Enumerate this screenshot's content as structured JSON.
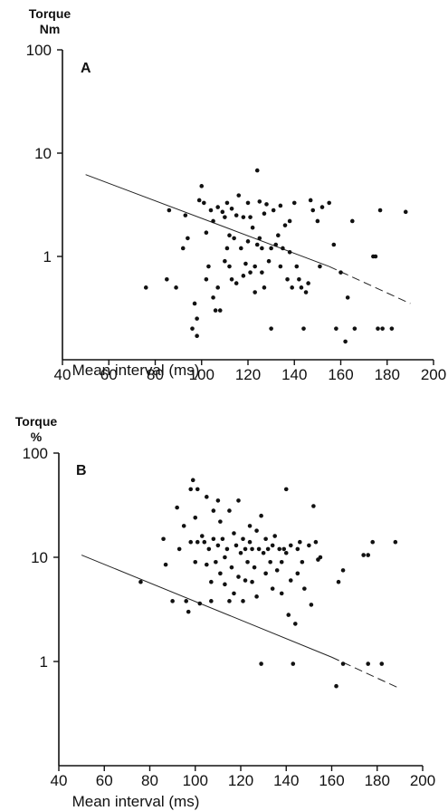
{
  "chart_data": [
    {
      "type": "scatter",
      "panel_label": "A",
      "ylabel_line1": "Torque",
      "ylabel_line2": "Nm",
      "xlabel": "Mean interval  (ms)",
      "y_scale": "log",
      "xlim": [
        40,
        200
      ],
      "ylim": [
        0.1,
        100
      ],
      "x_ticks": [
        40,
        60,
        80,
        100,
        120,
        140,
        160,
        180,
        200
      ],
      "y_ticks": [
        "100",
        "10",
        "1"
      ],
      "y_tick_values": [
        100,
        10,
        1
      ],
      "fit_line": {
        "x_start": 50,
        "y_start": 6.2,
        "x_solid_end": 155,
        "y_solid_end": 0.8,
        "x_end": 190,
        "y_end": 0.35
      },
      "points": [
        [
          76,
          0.5
        ],
        [
          85,
          0.6
        ],
        [
          86,
          2.8
        ],
        [
          89,
          0.5
        ],
        [
          92,
          1.2
        ],
        [
          93,
          2.5
        ],
        [
          94,
          1.5
        ],
        [
          96,
          0.2
        ],
        [
          97,
          0.35
        ],
        [
          98,
          0.25
        ],
        [
          98,
          0.17
        ],
        [
          99,
          3.5
        ],
        [
          100,
          4.8
        ],
        [
          101,
          3.3
        ],
        [
          102,
          1.7
        ],
        [
          102,
          0.6
        ],
        [
          103,
          0.8
        ],
        [
          104,
          2.8
        ],
        [
          105,
          2.2
        ],
        [
          105,
          0.4
        ],
        [
          106,
          0.3
        ],
        [
          107,
          3.0
        ],
        [
          107,
          0.5
        ],
        [
          108,
          0.3
        ],
        [
          109,
          2.7
        ],
        [
          110,
          0.9
        ],
        [
          110,
          2.4
        ],
        [
          111,
          1.2
        ],
        [
          111,
          3.3
        ],
        [
          112,
          1.6
        ],
        [
          112,
          0.8
        ],
        [
          113,
          2.9
        ],
        [
          113,
          0.6
        ],
        [
          114,
          1.5
        ],
        [
          115,
          2.5
        ],
        [
          115,
          0.55
        ],
        [
          116,
          3.9
        ],
        [
          117,
          1.2
        ],
        [
          118,
          0.65
        ],
        [
          118,
          2.4
        ],
        [
          119,
          0.85
        ],
        [
          120,
          1.4
        ],
        [
          120,
          3.3
        ],
        [
          121,
          0.7
        ],
        [
          121,
          2.4
        ],
        [
          122,
          1.9
        ],
        [
          123,
          0.8
        ],
        [
          123,
          0.45
        ],
        [
          124,
          6.8
        ],
        [
          124,
          1.3
        ],
        [
          125,
          3.4
        ],
        [
          125,
          1.5
        ],
        [
          126,
          1.2
        ],
        [
          126,
          0.7
        ],
        [
          127,
          2.6
        ],
        [
          127,
          0.5
        ],
        [
          128,
          3.2
        ],
        [
          129,
          0.9
        ],
        [
          130,
          0.2
        ],
        [
          130,
          1.2
        ],
        [
          131,
          2.8
        ],
        [
          132,
          1.3
        ],
        [
          133,
          1.6
        ],
        [
          134,
          0.8
        ],
        [
          134,
          3.1
        ],
        [
          135,
          1.2
        ],
        [
          136,
          2.0
        ],
        [
          137,
          0.6
        ],
        [
          138,
          1.1
        ],
        [
          138,
          2.2
        ],
        [
          139,
          0.5
        ],
        [
          140,
          3.3
        ],
        [
          141,
          0.8
        ],
        [
          142,
          0.6
        ],
        [
          143,
          0.5
        ],
        [
          144,
          0.2
        ],
        [
          145,
          0.45
        ],
        [
          146,
          0.55
        ],
        [
          147,
          3.5
        ],
        [
          148,
          2.8
        ],
        [
          150,
          2.2
        ],
        [
          151,
          0.8
        ],
        [
          152,
          3.0
        ],
        [
          155,
          3.3
        ],
        [
          157,
          1.3
        ],
        [
          158,
          0.2
        ],
        [
          160,
          0.7
        ],
        [
          162,
          0.15
        ],
        [
          163,
          0.4
        ],
        [
          165,
          2.2
        ],
        [
          166,
          0.2
        ],
        [
          174,
          1.0
        ],
        [
          175,
          1.0
        ],
        [
          176,
          0.2
        ],
        [
          177,
          2.8
        ],
        [
          178,
          0.2
        ],
        [
          182,
          0.2
        ],
        [
          188,
          2.7
        ]
      ]
    },
    {
      "type": "scatter",
      "panel_label": "B",
      "ylabel_line1": "Torque",
      "ylabel_line2": "%",
      "xlabel": "Mean interval  (ms)",
      "y_scale": "log",
      "xlim": [
        40,
        200
      ],
      "ylim": [
        0.1,
        100
      ],
      "x_ticks": [
        40,
        60,
        80,
        100,
        120,
        140,
        160,
        180,
        200
      ],
      "y_ticks": [
        "100",
        "10",
        "1"
      ],
      "y_tick_values": [
        100,
        10,
        1
      ],
      "fit_line": {
        "x_start": 50,
        "y_start": 10.5,
        "x_solid_end": 160,
        "y_solid_end": 1.1,
        "x_end": 190,
        "y_end": 0.55
      },
      "points": [
        [
          76,
          5.8
        ],
        [
          86,
          15
        ],
        [
          87,
          8.5
        ],
        [
          90,
          3.8
        ],
        [
          92,
          30
        ],
        [
          93,
          12
        ],
        [
          95,
          20
        ],
        [
          96,
          3.8
        ],
        [
          97,
          3
        ],
        [
          98,
          45
        ],
        [
          98,
          14
        ],
        [
          99,
          55
        ],
        [
          100,
          9
        ],
        [
          100,
          24
        ],
        [
          101,
          14
        ],
        [
          101,
          45
        ],
        [
          102,
          3.6
        ],
        [
          103,
          16
        ],
        [
          104,
          14
        ],
        [
          105,
          8.5
        ],
        [
          105,
          38
        ],
        [
          106,
          12
        ],
        [
          107,
          5.8
        ],
        [
          107,
          3.8
        ],
        [
          108,
          28
        ],
        [
          108,
          15
        ],
        [
          109,
          9
        ],
        [
          110,
          13
        ],
        [
          110,
          35
        ],
        [
          111,
          7
        ],
        [
          111,
          22
        ],
        [
          112,
          15
        ],
        [
          113,
          5.5
        ],
        [
          113,
          10
        ],
        [
          114,
          12
        ],
        [
          115,
          28
        ],
        [
          115,
          3.8
        ],
        [
          116,
          8
        ],
        [
          117,
          17
        ],
        [
          117,
          4.5
        ],
        [
          118,
          13
        ],
        [
          119,
          6.5
        ],
        [
          119,
          35
        ],
        [
          120,
          11
        ],
        [
          121,
          15
        ],
        [
          121,
          3.8
        ],
        [
          122,
          12
        ],
        [
          122,
          6
        ],
        [
          123,
          9
        ],
        [
          124,
          14
        ],
        [
          124,
          20
        ],
        [
          125,
          12
        ],
        [
          125,
          5.8
        ],
        [
          126,
          8
        ],
        [
          127,
          18
        ],
        [
          127,
          4.2
        ],
        [
          128,
          12
        ],
        [
          129,
          0.95
        ],
        [
          129,
          25
        ],
        [
          130,
          11
        ],
        [
          131,
          15
        ],
        [
          131,
          7
        ],
        [
          132,
          12
        ],
        [
          133,
          9
        ],
        [
          134,
          13
        ],
        [
          134,
          5
        ],
        [
          135,
          16
        ],
        [
          136,
          7.5
        ],
        [
          137,
          12
        ],
        [
          138,
          4.5
        ],
        [
          138,
          9
        ],
        [
          139,
          12
        ],
        [
          140,
          11
        ],
        [
          140,
          45
        ],
        [
          141,
          2.8
        ],
        [
          142,
          13
        ],
        [
          142,
          6
        ],
        [
          143,
          0.95
        ],
        [
          144,
          2.3
        ],
        [
          145,
          12
        ],
        [
          145,
          7
        ],
        [
          146,
          14
        ],
        [
          147,
          9
        ],
        [
          148,
          5
        ],
        [
          150,
          13
        ],
        [
          151,
          3.5
        ],
        [
          152,
          31
        ],
        [
          153,
          14
        ],
        [
          154,
          9.5
        ],
        [
          155,
          10
        ],
        [
          162,
          0.58
        ],
        [
          163,
          5.8
        ],
        [
          165,
          7.5
        ],
        [
          165,
          0.95
        ],
        [
          174,
          10.5
        ],
        [
          176,
          10.5
        ],
        [
          176,
          0.95
        ],
        [
          178,
          14
        ],
        [
          182,
          0.95
        ],
        [
          188,
          14
        ]
      ]
    }
  ]
}
